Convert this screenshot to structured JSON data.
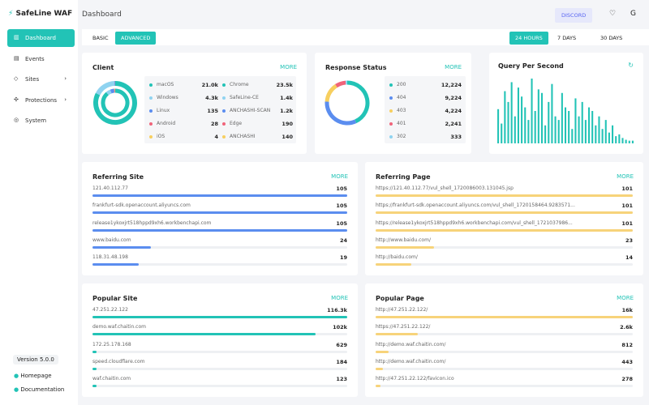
{
  "sidebar": {
    "brand": "SafeLine WAF",
    "nav": [
      "Dashboard",
      "Events",
      "Sites",
      "Protections",
      "System"
    ],
    "version": "Version 5.0.0",
    "links": [
      "Homepage",
      "Documentation"
    ]
  },
  "header": {
    "title": "Dashboard",
    "discord": "DISCORD"
  },
  "tabs": {
    "modes": [
      "BASIC",
      "ADVANCED"
    ],
    "ranges": [
      "24 HOURS",
      "7 DAYS",
      "30 DAYS"
    ]
  },
  "client": {
    "title": "Client",
    "more": "MORE",
    "os": [
      {
        "name": "macOS",
        "value": 21000,
        "label": "21.0k",
        "color": "#22c3b6"
      },
      {
        "name": "Windows",
        "value": 4300,
        "label": "4.3k",
        "color": "#8fd3f0"
      },
      {
        "name": "Linux",
        "value": 135,
        "color": "#5b8def"
      },
      {
        "name": "Android",
        "value": 28,
        "color": "#f0647a"
      },
      {
        "name": "iOS",
        "value": 4,
        "color": "#f7cf5f"
      }
    ],
    "browsers": [
      {
        "name": "Chrome",
        "value": 23500,
        "label": "23.5k",
        "color": "#22c3b6"
      },
      {
        "name": "SafeLine-CE",
        "value": 1400,
        "label": "1.4k",
        "color": "#8fd3f0"
      },
      {
        "name": "ANCHASHI-SCAN",
        "value": 1200,
        "label": "1.2k",
        "color": "#5b8def"
      },
      {
        "name": "Edge",
        "value": 190,
        "color": "#f0647a"
      },
      {
        "name": "ANCHASHI",
        "value": 140,
        "color": "#f7cf5f"
      }
    ]
  },
  "response": {
    "title": "Response Status",
    "more": "MORE",
    "items": [
      {
        "name": "200",
        "value": 12224,
        "label": "12,224",
        "color": "#22c3b6"
      },
      {
        "name": "404",
        "value": 9224,
        "label": "9,224",
        "color": "#5b8def"
      },
      {
        "name": "403",
        "value": 4224,
        "label": "4,224",
        "color": "#f7cf5f"
      },
      {
        "name": "401",
        "value": 2241,
        "label": "2,241",
        "color": "#f0647a"
      },
      {
        "name": "302",
        "value": 333,
        "color": "#8fd3f0"
      }
    ]
  },
  "qps": {
    "title": "Query Per Second",
    "color": "#22c3b6",
    "values": [
      38,
      22,
      58,
      46,
      68,
      30,
      62,
      52,
      40,
      26,
      72,
      36,
      60,
      56,
      20,
      46,
      66,
      30,
      26,
      56,
      40,
      36,
      16,
      50,
      30,
      46,
      26,
      40,
      36,
      20,
      30,
      16,
      26,
      12,
      20,
      8,
      10,
      6,
      4,
      3,
      3
    ]
  },
  "lists": [
    {
      "title": "Referring Site",
      "more": "MORE",
      "color": "#5b8def",
      "items": [
        {
          "name": "121.40.112.77",
          "value": 105
        },
        {
          "name": "frankfurt-sdk.openaccount.aliyuncs.com",
          "value": 105
        },
        {
          "name": "release1ykoxjrt518hppd9xh6.workbenchapi.com",
          "value": 105
        },
        {
          "name": "www.baidu.com",
          "value": 24
        },
        {
          "name": "118.31.48.198",
          "value": 19
        }
      ]
    },
    {
      "title": "Referring Page",
      "more": "MORE",
      "color": "#f7d37a",
      "items": [
        {
          "name": "https://121.40.112.77/vul_shell_1720086003.131045.jsp",
          "value": 101
        },
        {
          "name": "https://frankfurt-sdk.openaccount.aliyuncs.com/vul_shell_1720158464.9283571...",
          "value": 101
        },
        {
          "name": "https://release1ykoxjrt518hppd9xh6.workbenchapi.com/vul_shell_1721037986...",
          "value": 101
        },
        {
          "name": "http://www.baidu.com/",
          "value": 23
        },
        {
          "name": "http://baidu.com/",
          "value": 14
        }
      ]
    },
    {
      "title": "Popular Site",
      "more": "MORE",
      "color": "#22c3b6",
      "items": [
        {
          "name": "47.251.22.122",
          "value": 116300,
          "label": "116.3k"
        },
        {
          "name": "demo.waf.chaitin.com",
          "value": 102000,
          "label": "102k"
        },
        {
          "name": "172.25.178.168",
          "value": 629
        },
        {
          "name": "speed.cloudflare.com",
          "value": 184
        },
        {
          "name": "waf.chaitin.com",
          "value": 123
        }
      ]
    },
    {
      "title": "Popular Page",
      "more": "MORE",
      "color": "#f7d37a",
      "items": [
        {
          "name": "http://47.251.22.122/",
          "value": 16000,
          "label": "16k"
        },
        {
          "name": "https://47.251.22.122/",
          "value": 2600,
          "label": "2.6k"
        },
        {
          "name": "http://demo.waf.chaitin.com/",
          "value": 812
        },
        {
          "name": "http://demo.waf.chaitin.com/",
          "value": 443
        },
        {
          "name": "http://47.251.22.122/favicon.ico",
          "value": 278
        }
      ]
    }
  ]
}
